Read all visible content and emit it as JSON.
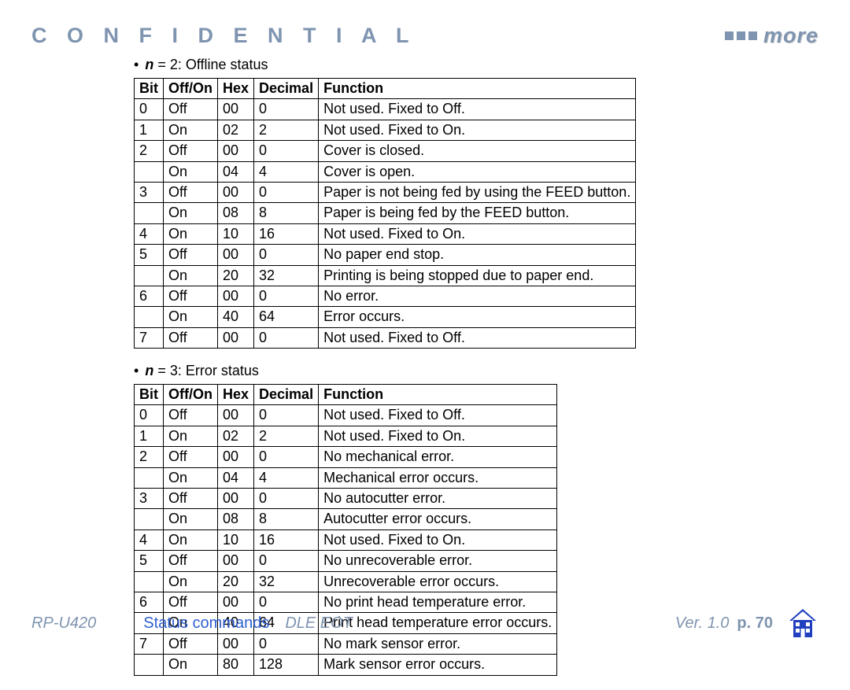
{
  "header": {
    "confidential": "C O N F I D E N T I A L",
    "more": "more"
  },
  "tables": [
    {
      "caption_prefix": "n",
      "caption_rest": " = 2: Offline status",
      "columns": [
        "Bit",
        "Off/On",
        "Hex",
        "Decimal",
        "Function"
      ],
      "rows": [
        [
          "0",
          "Off",
          "00",
          "0",
          "Not used. Fixed to Off."
        ],
        [
          "1",
          "On",
          "02",
          "2",
          "Not used. Fixed to On."
        ],
        [
          "2",
          "Off",
          "00",
          "0",
          "Cover is closed."
        ],
        [
          "",
          "On",
          "04",
          "4",
          "Cover is open."
        ],
        [
          "3",
          "Off",
          "00",
          "0",
          "Paper is not being fed by using the FEED button."
        ],
        [
          "",
          "On",
          "08",
          "8",
          "Paper is being fed by the FEED button."
        ],
        [
          "4",
          "On",
          "10",
          "16",
          "Not used. Fixed to On."
        ],
        [
          "5",
          "Off",
          "00",
          "0",
          "No paper end stop."
        ],
        [
          "",
          "On",
          "20",
          "32",
          "Printing is being stopped due to paper end."
        ],
        [
          "6",
          "Off",
          "00",
          "0",
          "No error."
        ],
        [
          "",
          "On",
          "40",
          "64",
          "Error occurs."
        ],
        [
          "7",
          "Off",
          "00",
          "0",
          "Not used. Fixed to Off."
        ]
      ]
    },
    {
      "caption_prefix": "n",
      "caption_rest": " = 3: Error status",
      "columns": [
        "Bit",
        "Off/On",
        "Hex",
        "Decimal",
        "Function"
      ],
      "rows": [
        [
          "0",
          "Off",
          "00",
          "0",
          "Not used. Fixed to Off."
        ],
        [
          "1",
          "On",
          "02",
          "2",
          "Not used. Fixed to On."
        ],
        [
          "2",
          "Off",
          "00",
          "0",
          "No mechanical error."
        ],
        [
          "",
          "On",
          "04",
          "4",
          "Mechanical error occurs."
        ],
        [
          "3",
          "Off",
          "00",
          "0",
          "No autocutter error."
        ],
        [
          "",
          "On",
          "08",
          "8",
          "Autocutter error occurs."
        ],
        [
          "4",
          "On",
          "10",
          "16",
          "Not used. Fixed to On."
        ],
        [
          "5",
          "Off",
          "00",
          "0",
          "No unrecoverable error."
        ],
        [
          "",
          "On",
          "20",
          "32",
          "Unrecoverable error occurs."
        ],
        [
          "6",
          "Off",
          "00",
          "0",
          "No print head temperature error."
        ],
        [
          "",
          "On",
          "40",
          "64",
          "Print head temperature error occurs."
        ],
        [
          "7",
          "Off",
          "00",
          "0",
          "No mark sensor error."
        ],
        [
          "",
          "On",
          "80",
          "128",
          "Mark sensor error occurs."
        ]
      ]
    }
  ],
  "footer": {
    "model": "RP-U420",
    "section": "Status commands",
    "command": "DLE EOT",
    "version": "Ver. 1.0",
    "page": "p. 70"
  },
  "colors": {
    "accent": "#7e94b0",
    "link": "#3060d0",
    "home": "#2040c0"
  }
}
